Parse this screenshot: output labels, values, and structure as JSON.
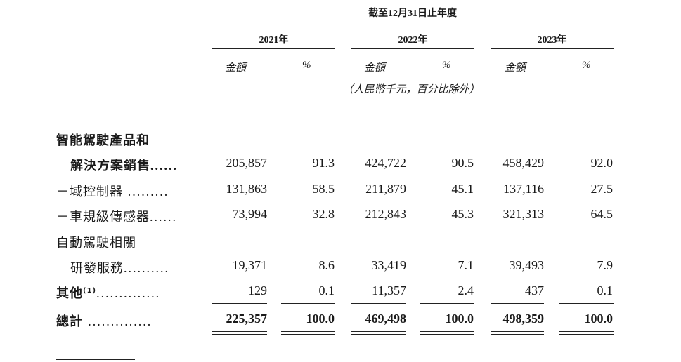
{
  "header": {
    "period": "截至12月31日止年度",
    "years": [
      "2021年",
      "2022年",
      "2023年"
    ],
    "col_amount": "金額",
    "col_percent": "%",
    "unit_note": "（人民幣千元，百分比除外）"
  },
  "rows": [
    {
      "label_line1": "智能駕駛產品和",
      "label_line2": "解決方案銷售",
      "dots": "......",
      "values": [
        "205,857",
        "91.3",
        "424,722",
        "90.5",
        "458,429",
        "92.0"
      ]
    },
    {
      "label": "－域控制器",
      "dots": ".........",
      "values": [
        "131,863",
        "58.5",
        "211,879",
        "45.1",
        "137,116",
        "27.5"
      ]
    },
    {
      "label": "－車規級傳感器",
      "dots": "......",
      "values": [
        "73,994",
        "32.8",
        "212,843",
        "45.3",
        "321,313",
        "64.5"
      ]
    },
    {
      "label_line1": "自動駕駛相關",
      "label_line2": "研發服務",
      "dots": "..........",
      "values": [
        "19,371",
        "8.6",
        "33,419",
        "7.1",
        "39,493",
        "7.9"
      ]
    },
    {
      "label": "其他",
      "footnote": "(1)",
      "dots": "..............",
      "values": [
        "129",
        "0.1",
        "11,357",
        "2.4",
        "437",
        "0.1"
      ]
    },
    {
      "label": "總計",
      "dots": "..............",
      "values": [
        "225,357",
        "100.0",
        "469,498",
        "100.0",
        "498,359",
        "100.0"
      ]
    }
  ]
}
